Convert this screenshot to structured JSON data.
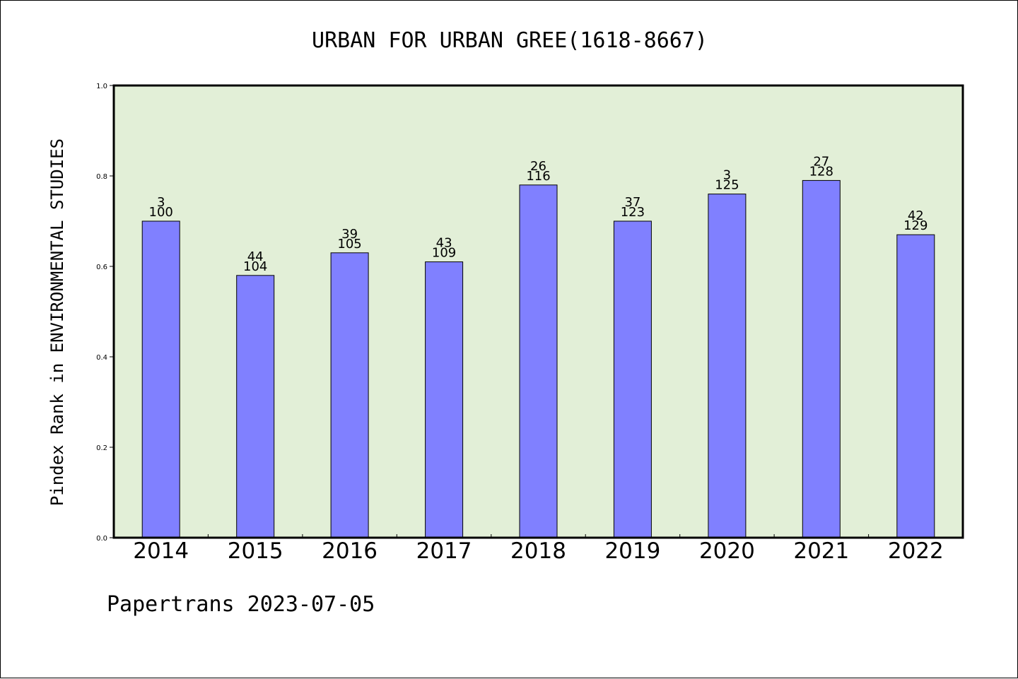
{
  "chart_data": {
    "type": "bar",
    "title": "URBAN FOR URBAN GREE(1618-8667)",
    "ylabel": "Pindex Rank in ENVIRONMENTAL STUDIES",
    "xlabel": "",
    "categories": [
      "2014",
      "2015",
      "2016",
      "2017",
      "2018",
      "2019",
      "2020",
      "2021",
      "2022"
    ],
    "values": [
      0.7,
      0.58,
      0.63,
      0.61,
      0.78,
      0.7,
      0.76,
      0.79,
      0.67
    ],
    "rank_labels": [
      "3",
      "44",
      "39",
      "43",
      "26",
      "37",
      "3",
      "27",
      "42"
    ],
    "total_labels": [
      "100",
      "104",
      "105",
      "109",
      "116",
      "123",
      "125",
      "128",
      "129"
    ],
    "ylim": [
      0,
      1.0
    ],
    "yticks": [
      "0.0",
      "0.2",
      "0.4",
      "0.6",
      "0.8",
      "1.0"
    ],
    "grid": false,
    "colors": {
      "bar_fill": "#8080ff",
      "bar_stroke": "#000000",
      "plot_background": "#e2efd7",
      "axis": "#000000"
    }
  },
  "footer": {
    "text": "Papertrans 2023-07-05"
  }
}
